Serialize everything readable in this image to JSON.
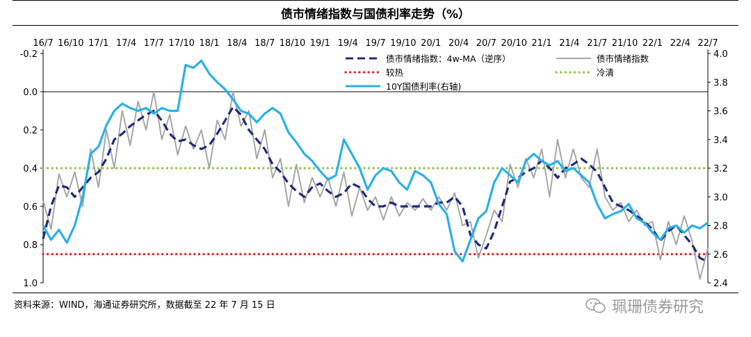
{
  "title": "债市情绪指数与国债利率走势（%）",
  "source": "资料来源：WIND，海通证券研究所，数据截至 22 年 7 月 15 日",
  "watermark": "珮珊债券研究",
  "colors": {
    "ma": "#1f2b7a",
    "index": "#a6a6a6",
    "hot": "#e31a1c",
    "cold": "#8cc63f",
    "yield": "#2ab0e8"
  },
  "chart_data": {
    "type": "line",
    "title": "债市情绪指数与国债利率走势（%）",
    "x_ticks": [
      "16/7",
      "16/10",
      "17/1",
      "17/4",
      "17/7",
      "17/10",
      "18/1",
      "18/4",
      "18/7",
      "18/10",
      "19/1",
      "19/4",
      "19/7",
      "19/10",
      "20/1",
      "20/4",
      "20/7",
      "20/10",
      "21/1",
      "21/4",
      "21/7",
      "21/10",
      "22/1",
      "22/4",
      "22/7"
    ],
    "left_axis": {
      "ticks": [
        "-0.2",
        "0.0",
        "0.2",
        "0.4",
        "0.6",
        "0.8",
        "1.0"
      ],
      "ylim": [
        -0.2,
        1.0
      ],
      "inverted": true
    },
    "right_axis": {
      "ticks": [
        "2.4",
        "2.6",
        "2.8",
        "3.0",
        "3.2",
        "3.4",
        "3.6",
        "3.8",
        "4.0"
      ],
      "ylim": [
        2.4,
        4.0
      ]
    },
    "legend": [
      {
        "key": "ma",
        "label": "债市情绪指数：4w-MA（逆序）",
        "style": "dashed"
      },
      {
        "key": "index",
        "label": "债市情绪指数",
        "style": "solid"
      },
      {
        "key": "hot",
        "label": "较热",
        "style": "dotted"
      },
      {
        "key": "cold",
        "label": "冷清",
        "style": "dotted"
      },
      {
        "key": "yield",
        "label": "10Y国债利率(右轴)",
        "style": "solid"
      }
    ],
    "legend_position": "top",
    "reference_lines": {
      "hot": 0.85,
      "cold": 0.4
    },
    "series": [
      {
        "name": "债市情绪指数：4w-MA（逆序）",
        "axis": "left",
        "key": "ma",
        "points": [
          [
            0,
            0.77
          ],
          [
            1,
            0.6
          ],
          [
            2,
            0.49
          ],
          [
            3,
            0.5
          ],
          [
            4,
            0.55
          ],
          [
            5,
            0.5
          ],
          [
            6,
            0.45
          ],
          [
            7,
            0.42
          ],
          [
            8,
            0.35
          ],
          [
            9,
            0.25
          ],
          [
            10,
            0.22
          ],
          [
            11,
            0.18
          ],
          [
            12,
            0.15
          ],
          [
            13,
            0.12
          ],
          [
            14,
            0.1
          ],
          [
            15,
            0.15
          ],
          [
            16,
            0.22
          ],
          [
            17,
            0.26
          ],
          [
            18,
            0.25
          ],
          [
            19,
            0.28
          ],
          [
            20,
            0.3
          ],
          [
            21,
            0.28
          ],
          [
            22,
            0.22
          ],
          [
            23,
            0.15
          ],
          [
            24,
            0.08
          ],
          [
            25,
            0.12
          ],
          [
            26,
            0.2
          ],
          [
            27,
            0.25
          ],
          [
            28,
            0.3
          ],
          [
            29,
            0.38
          ],
          [
            30,
            0.42
          ],
          [
            31,
            0.48
          ],
          [
            32,
            0.52
          ],
          [
            33,
            0.55
          ],
          [
            34,
            0.5
          ],
          [
            35,
            0.48
          ],
          [
            36,
            0.52
          ],
          [
            37,
            0.55
          ],
          [
            38,
            0.53
          ],
          [
            39,
            0.48
          ],
          [
            40,
            0.5
          ],
          [
            41,
            0.56
          ],
          [
            42,
            0.6
          ],
          [
            43,
            0.6
          ],
          [
            44,
            0.58
          ],
          [
            45,
            0.6
          ],
          [
            46,
            0.6
          ],
          [
            47,
            0.6
          ],
          [
            48,
            0.6
          ],
          [
            49,
            0.6
          ],
          [
            50,
            0.58
          ],
          [
            51,
            0.58
          ],
          [
            52,
            0.55
          ],
          [
            53,
            0.6
          ],
          [
            54,
            0.75
          ],
          [
            55,
            0.8
          ],
          [
            56,
            0.82
          ],
          [
            57,
            0.73
          ],
          [
            58,
            0.6
          ],
          [
            59,
            0.47
          ],
          [
            60,
            0.45
          ],
          [
            61,
            0.42
          ],
          [
            62,
            0.4
          ],
          [
            63,
            0.36
          ],
          [
            64,
            0.4
          ],
          [
            65,
            0.45
          ],
          [
            66,
            0.4
          ],
          [
            67,
            0.38
          ],
          [
            68,
            0.35
          ],
          [
            69,
            0.38
          ],
          [
            70,
            0.42
          ],
          [
            71,
            0.5
          ],
          [
            72,
            0.58
          ],
          [
            73,
            0.6
          ],
          [
            74,
            0.62
          ],
          [
            75,
            0.65
          ],
          [
            76,
            0.68
          ],
          [
            77,
            0.72
          ],
          [
            78,
            0.78
          ],
          [
            79,
            0.73
          ],
          [
            80,
            0.7
          ],
          [
            81,
            0.75
          ],
          [
            82,
            0.8
          ],
          [
            83,
            0.87
          ],
          [
            84,
            0.89
          ]
        ]
      },
      {
        "name": "债市情绪指数",
        "axis": "left",
        "key": "index",
        "points": [
          [
            0,
            0.57
          ],
          [
            1,
            0.72
          ],
          [
            2,
            0.43
          ],
          [
            3,
            0.55
          ],
          [
            4,
            0.42
          ],
          [
            5,
            0.6
          ],
          [
            6,
            0.3
          ],
          [
            7,
            0.5
          ],
          [
            8,
            0.2
          ],
          [
            9,
            0.4
          ],
          [
            10,
            0.1
          ],
          [
            11,
            0.28
          ],
          [
            12,
            0.05
          ],
          [
            13,
            0.2
          ],
          [
            14,
            0.0
          ],
          [
            15,
            0.25
          ],
          [
            16,
            0.12
          ],
          [
            17,
            0.33
          ],
          [
            18,
            0.18
          ],
          [
            19,
            0.3
          ],
          [
            20,
            0.2
          ],
          [
            21,
            0.4
          ],
          [
            22,
            0.15
          ],
          [
            23,
            0.25
          ],
          [
            24,
            0.0
          ],
          [
            25,
            0.18
          ],
          [
            26,
            0.1
          ],
          [
            27,
            0.35
          ],
          [
            28,
            0.2
          ],
          [
            29,
            0.45
          ],
          [
            30,
            0.35
          ],
          [
            31,
            0.6
          ],
          [
            32,
            0.38
          ],
          [
            33,
            0.58
          ],
          [
            34,
            0.45
          ],
          [
            35,
            0.55
          ],
          [
            36,
            0.45
          ],
          [
            37,
            0.6
          ],
          [
            38,
            0.42
          ],
          [
            39,
            0.65
          ],
          [
            40,
            0.5
          ],
          [
            41,
            0.62
          ],
          [
            42,
            0.55
          ],
          [
            43,
            0.67
          ],
          [
            44,
            0.55
          ],
          [
            45,
            0.65
          ],
          [
            46,
            0.58
          ],
          [
            47,
            0.62
          ],
          [
            48,
            0.56
          ],
          [
            49,
            0.62
          ],
          [
            50,
            0.55
          ],
          [
            51,
            0.62
          ],
          [
            52,
            0.53
          ],
          [
            53,
            0.7
          ],
          [
            54,
            0.68
          ],
          [
            55,
            0.87
          ],
          [
            56,
            0.75
          ],
          [
            57,
            0.62
          ],
          [
            58,
            0.68
          ],
          [
            59,
            0.38
          ],
          [
            60,
            0.5
          ],
          [
            61,
            0.35
          ],
          [
            62,
            0.45
          ],
          [
            63,
            0.3
          ],
          [
            64,
            0.55
          ],
          [
            65,
            0.25
          ],
          [
            66,
            0.45
          ],
          [
            67,
            0.3
          ],
          [
            68,
            0.45
          ],
          [
            69,
            0.5
          ],
          [
            70,
            0.3
          ],
          [
            71,
            0.55
          ],
          [
            72,
            0.62
          ],
          [
            73,
            0.58
          ],
          [
            74,
            0.68
          ],
          [
            75,
            0.62
          ],
          [
            76,
            0.7
          ],
          [
            77,
            0.68
          ],
          [
            78,
            0.88
          ],
          [
            79,
            0.68
          ],
          [
            80,
            0.8
          ],
          [
            81,
            0.65
          ],
          [
            82,
            0.78
          ],
          [
            83,
            0.98
          ],
          [
            84,
            0.82
          ]
        ]
      },
      {
        "name": "10Y国债利率(右轴)",
        "axis": "right",
        "key": "yield",
        "points": [
          [
            0,
            2.8
          ],
          [
            1,
            2.7
          ],
          [
            2,
            2.77
          ],
          [
            3,
            2.68
          ],
          [
            4,
            2.8
          ],
          [
            5,
            3.0
          ],
          [
            6,
            3.3
          ],
          [
            7,
            3.35
          ],
          [
            8,
            3.5
          ],
          [
            9,
            3.6
          ],
          [
            10,
            3.65
          ],
          [
            11,
            3.62
          ],
          [
            12,
            3.6
          ],
          [
            13,
            3.62
          ],
          [
            14,
            3.58
          ],
          [
            15,
            3.62
          ],
          [
            16,
            3.6
          ],
          [
            17,
            3.6
          ],
          [
            18,
            3.92
          ],
          [
            19,
            3.9
          ],
          [
            20,
            3.95
          ],
          [
            21,
            3.86
          ],
          [
            22,
            3.8
          ],
          [
            23,
            3.75
          ],
          [
            24,
            3.68
          ],
          [
            25,
            3.6
          ],
          [
            26,
            3.58
          ],
          [
            27,
            3.52
          ],
          [
            28,
            3.58
          ],
          [
            29,
            3.62
          ],
          [
            30,
            3.58
          ],
          [
            31,
            3.45
          ],
          [
            32,
            3.38
          ],
          [
            33,
            3.3
          ],
          [
            34,
            3.25
          ],
          [
            35,
            3.18
          ],
          [
            36,
            3.12
          ],
          [
            37,
            3.15
          ],
          [
            38,
            3.4
          ],
          [
            39,
            3.3
          ],
          [
            40,
            3.2
          ],
          [
            41,
            3.05
          ],
          [
            42,
            3.15
          ],
          [
            43,
            3.2
          ],
          [
            44,
            3.18
          ],
          [
            45,
            3.1
          ],
          [
            46,
            3.05
          ],
          [
            47,
            3.18
          ],
          [
            48,
            3.15
          ],
          [
            49,
            3.1
          ],
          [
            50,
            2.95
          ],
          [
            51,
            2.88
          ],
          [
            52,
            2.62
          ],
          [
            53,
            2.55
          ],
          [
            54,
            2.7
          ],
          [
            55,
            2.85
          ],
          [
            56,
            2.9
          ],
          [
            57,
            3.1
          ],
          [
            58,
            3.2
          ],
          [
            59,
            3.15
          ],
          [
            60,
            3.1
          ],
          [
            61,
            3.25
          ],
          [
            62,
            3.3
          ],
          [
            63,
            3.25
          ],
          [
            64,
            3.22
          ],
          [
            65,
            3.25
          ],
          [
            66,
            3.18
          ],
          [
            67,
            3.2
          ],
          [
            68,
            3.15
          ],
          [
            69,
            3.1
          ],
          [
            70,
            2.95
          ],
          [
            71,
            2.85
          ],
          [
            72,
            2.88
          ],
          [
            73,
            2.9
          ],
          [
            74,
            2.95
          ],
          [
            75,
            2.85
          ],
          [
            76,
            2.82
          ],
          [
            77,
            2.75
          ],
          [
            78,
            2.7
          ],
          [
            79,
            2.78
          ],
          [
            80,
            2.8
          ],
          [
            81,
            2.75
          ],
          [
            82,
            2.8
          ],
          [
            83,
            2.78
          ],
          [
            84,
            2.82
          ]
        ]
      }
    ]
  }
}
